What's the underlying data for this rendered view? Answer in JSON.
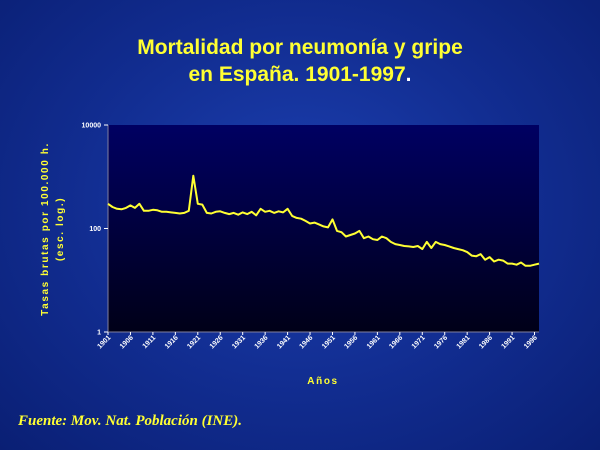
{
  "title": {
    "line1": "Mortalidad por neumonía y gripe",
    "line2": "en España. 1901-1997",
    "dot": "."
  },
  "footer": "Fuente: Mov. Nat. Población (INE).",
  "colors": {
    "line": "#ffff33",
    "text_accent": "#ffff33",
    "ticks": "#ffffff",
    "plot_top": "#000060",
    "plot_bottom": "#000018"
  },
  "chart_data": {
    "type": "line",
    "title": "Mortalidad por neumonía y gripe en España. 1901-1997.",
    "xlabel": "Años",
    "ylabel": "Tasas brutas por 100.000 h.",
    "ylabel2": "(esc. log.)",
    "y_scale": "log",
    "ylim": [
      1,
      10000
    ],
    "xlim": [
      1901,
      1997
    ],
    "y_ticks": [
      1,
      100,
      10000
    ],
    "y_tick_labels": [
      "1",
      "100",
      "10000"
    ],
    "x_ticks": [
      1901,
      1906,
      1911,
      1916,
      1921,
      1926,
      1931,
      1936,
      1941,
      1946,
      1951,
      1956,
      1961,
      1966,
      1971,
      1976,
      1981,
      1986,
      1991,
      1996
    ],
    "grid": false,
    "legend": "none",
    "series": [
      {
        "x": [
          1901,
          1902,
          1903,
          1904,
          1905,
          1906,
          1907,
          1908,
          1909,
          1910,
          1911,
          1912,
          1913,
          1914,
          1915,
          1916,
          1917,
          1918,
          1919,
          1920,
          1921,
          1922,
          1923,
          1924,
          1925,
          1926,
          1927,
          1928,
          1929,
          1930,
          1931,
          1932,
          1933,
          1934,
          1935,
          1936,
          1937,
          1938,
          1939,
          1940,
          1941,
          1942,
          1943,
          1944,
          1945,
          1946,
          1947,
          1948,
          1949,
          1950,
          1951,
          1952,
          1953,
          1954,
          1955,
          1956,
          1957,
          1958,
          1959,
          1960,
          1961,
          1962,
          1963,
          1964,
          1965,
          1966,
          1967,
          1968,
          1969,
          1970,
          1971,
          1972,
          1973,
          1974,
          1975,
          1976,
          1977,
          1978,
          1979,
          1980,
          1981,
          1982,
          1983,
          1984,
          1985,
          1986,
          1987,
          1988,
          1989,
          1990,
          1991,
          1992,
          1993,
          1994,
          1995,
          1996,
          1997
        ],
        "y": [
          300,
          260,
          240,
          235,
          250,
          280,
          250,
          300,
          220,
          220,
          230,
          225,
          210,
          210,
          205,
          200,
          195,
          200,
          220,
          1050,
          300,
          290,
          200,
          195,
          210,
          215,
          200,
          190,
          200,
          185,
          205,
          190,
          210,
          180,
          240,
          210,
          220,
          200,
          215,
          205,
          240,
          175,
          160,
          155,
          140,
          125,
          130,
          120,
          110,
          105,
          150,
          90,
          85,
          70,
          75,
          80,
          90,
          65,
          70,
          62,
          60,
          70,
          65,
          55,
          50,
          48,
          46,
          45,
          44,
          46,
          40,
          55,
          42,
          55,
          50,
          48,
          45,
          42,
          40,
          38,
          35,
          30,
          29,
          32,
          25,
          28,
          23,
          25,
          24,
          21,
          21,
          20,
          22,
          19,
          19,
          20,
          21
        ]
      }
    ]
  }
}
